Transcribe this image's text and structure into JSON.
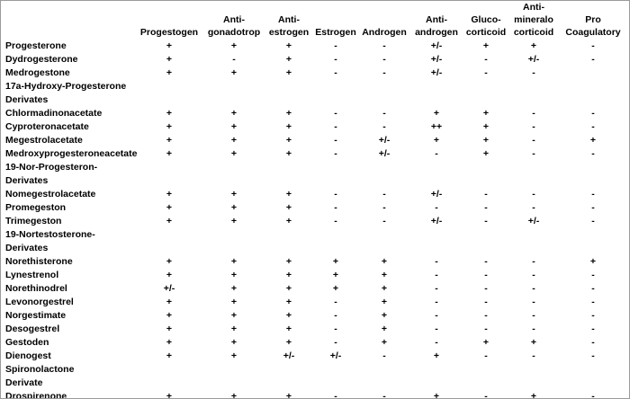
{
  "table": {
    "columns": [
      "Progestogen",
      "Anti-\ngonadotrop",
      "Anti-\nestrogen",
      "Estrogen",
      "Androgen",
      "Anti-\nandrogen",
      "Gluco-\ncorticoid",
      "Anti-\nmineralo\ncorticoid",
      "Pro\nCoagulatory"
    ],
    "rows": [
      [
        "Progesterone",
        "+",
        "+",
        "+",
        "-",
        "-",
        "+/-",
        "+",
        "+",
        "-"
      ],
      [
        "Dydrogesterone",
        "+",
        "-",
        "+",
        "-",
        "-",
        "+/-",
        "-",
        "+/-",
        "-"
      ],
      [
        "Medrogestone",
        "+",
        "+",
        "+",
        "-",
        "-",
        "+/-",
        "-",
        "-",
        null
      ],
      [
        "17a-Hydroxy-Progesterone\nDerivates"
      ],
      [
        "Chlormadinonacetate",
        "+",
        "+",
        "+",
        "-",
        "-",
        "+",
        "+",
        "-",
        "-"
      ],
      [
        "Cyproteronacetate",
        "+",
        "+",
        "+",
        "-",
        "-",
        "++",
        "+",
        "-",
        "-"
      ],
      [
        "Megestrolacetate",
        "+",
        "+",
        "+",
        "-",
        "+/-",
        "+",
        "+",
        "-",
        "+"
      ],
      [
        "Medroxyprogesteroneacetate",
        "+",
        "+",
        "+",
        "-",
        "+/-",
        "-",
        "+",
        "-",
        "-"
      ],
      [
        "19-Nor-Progesteron-\nDerivates"
      ],
      [
        "Nomegestrolacetate",
        "+",
        "+",
        "+",
        "-",
        "-",
        "+/-",
        "-",
        "-",
        "-"
      ],
      [
        "Promegeston",
        "+",
        "+",
        "+",
        "-",
        "-",
        "-",
        "-",
        "-",
        "-"
      ],
      [
        "Trimegeston",
        "+",
        "+",
        "+",
        "-",
        "-",
        "+/-",
        "-",
        "+/-",
        "-"
      ],
      [
        "19-Nortestosterone-\nDerivates"
      ],
      [
        "Norethisterone",
        "+",
        "+",
        "+",
        "+",
        "+",
        "-",
        "-",
        "-",
        "+"
      ],
      [
        "Lynestrenol",
        "+",
        "+",
        "+",
        "+",
        "+",
        "-",
        "-",
        "-",
        "-"
      ],
      [
        "Norethinodrel",
        "+/-",
        "+",
        "+",
        "+",
        "+",
        "-",
        "-",
        "-",
        "-"
      ],
      [
        "Levonorgestrel",
        "+",
        "+",
        "+",
        "-",
        "+",
        "-",
        "-",
        "-",
        "-"
      ],
      [
        "Norgestimate",
        "+",
        "+",
        "+",
        "-",
        "+",
        "-",
        "-",
        "-",
        "-"
      ],
      [
        "Desogestrel",
        "+",
        "+",
        "+",
        "-",
        "+",
        "-",
        "-",
        "-",
        "-"
      ],
      [
        "Gestoden",
        "+",
        "+",
        "+",
        "-",
        "+",
        "-",
        "+",
        "+",
        "-"
      ],
      [
        "Dienogest",
        "+",
        "+",
        "+/-",
        "+/-",
        "-",
        "+",
        "-",
        "-",
        "-"
      ],
      [
        "Spironolactone\nDerivate"
      ],
      [
        "Drospirenone",
        "+",
        "+",
        "+",
        "-",
        "-",
        "+",
        "-",
        "+",
        "-"
      ]
    ]
  }
}
